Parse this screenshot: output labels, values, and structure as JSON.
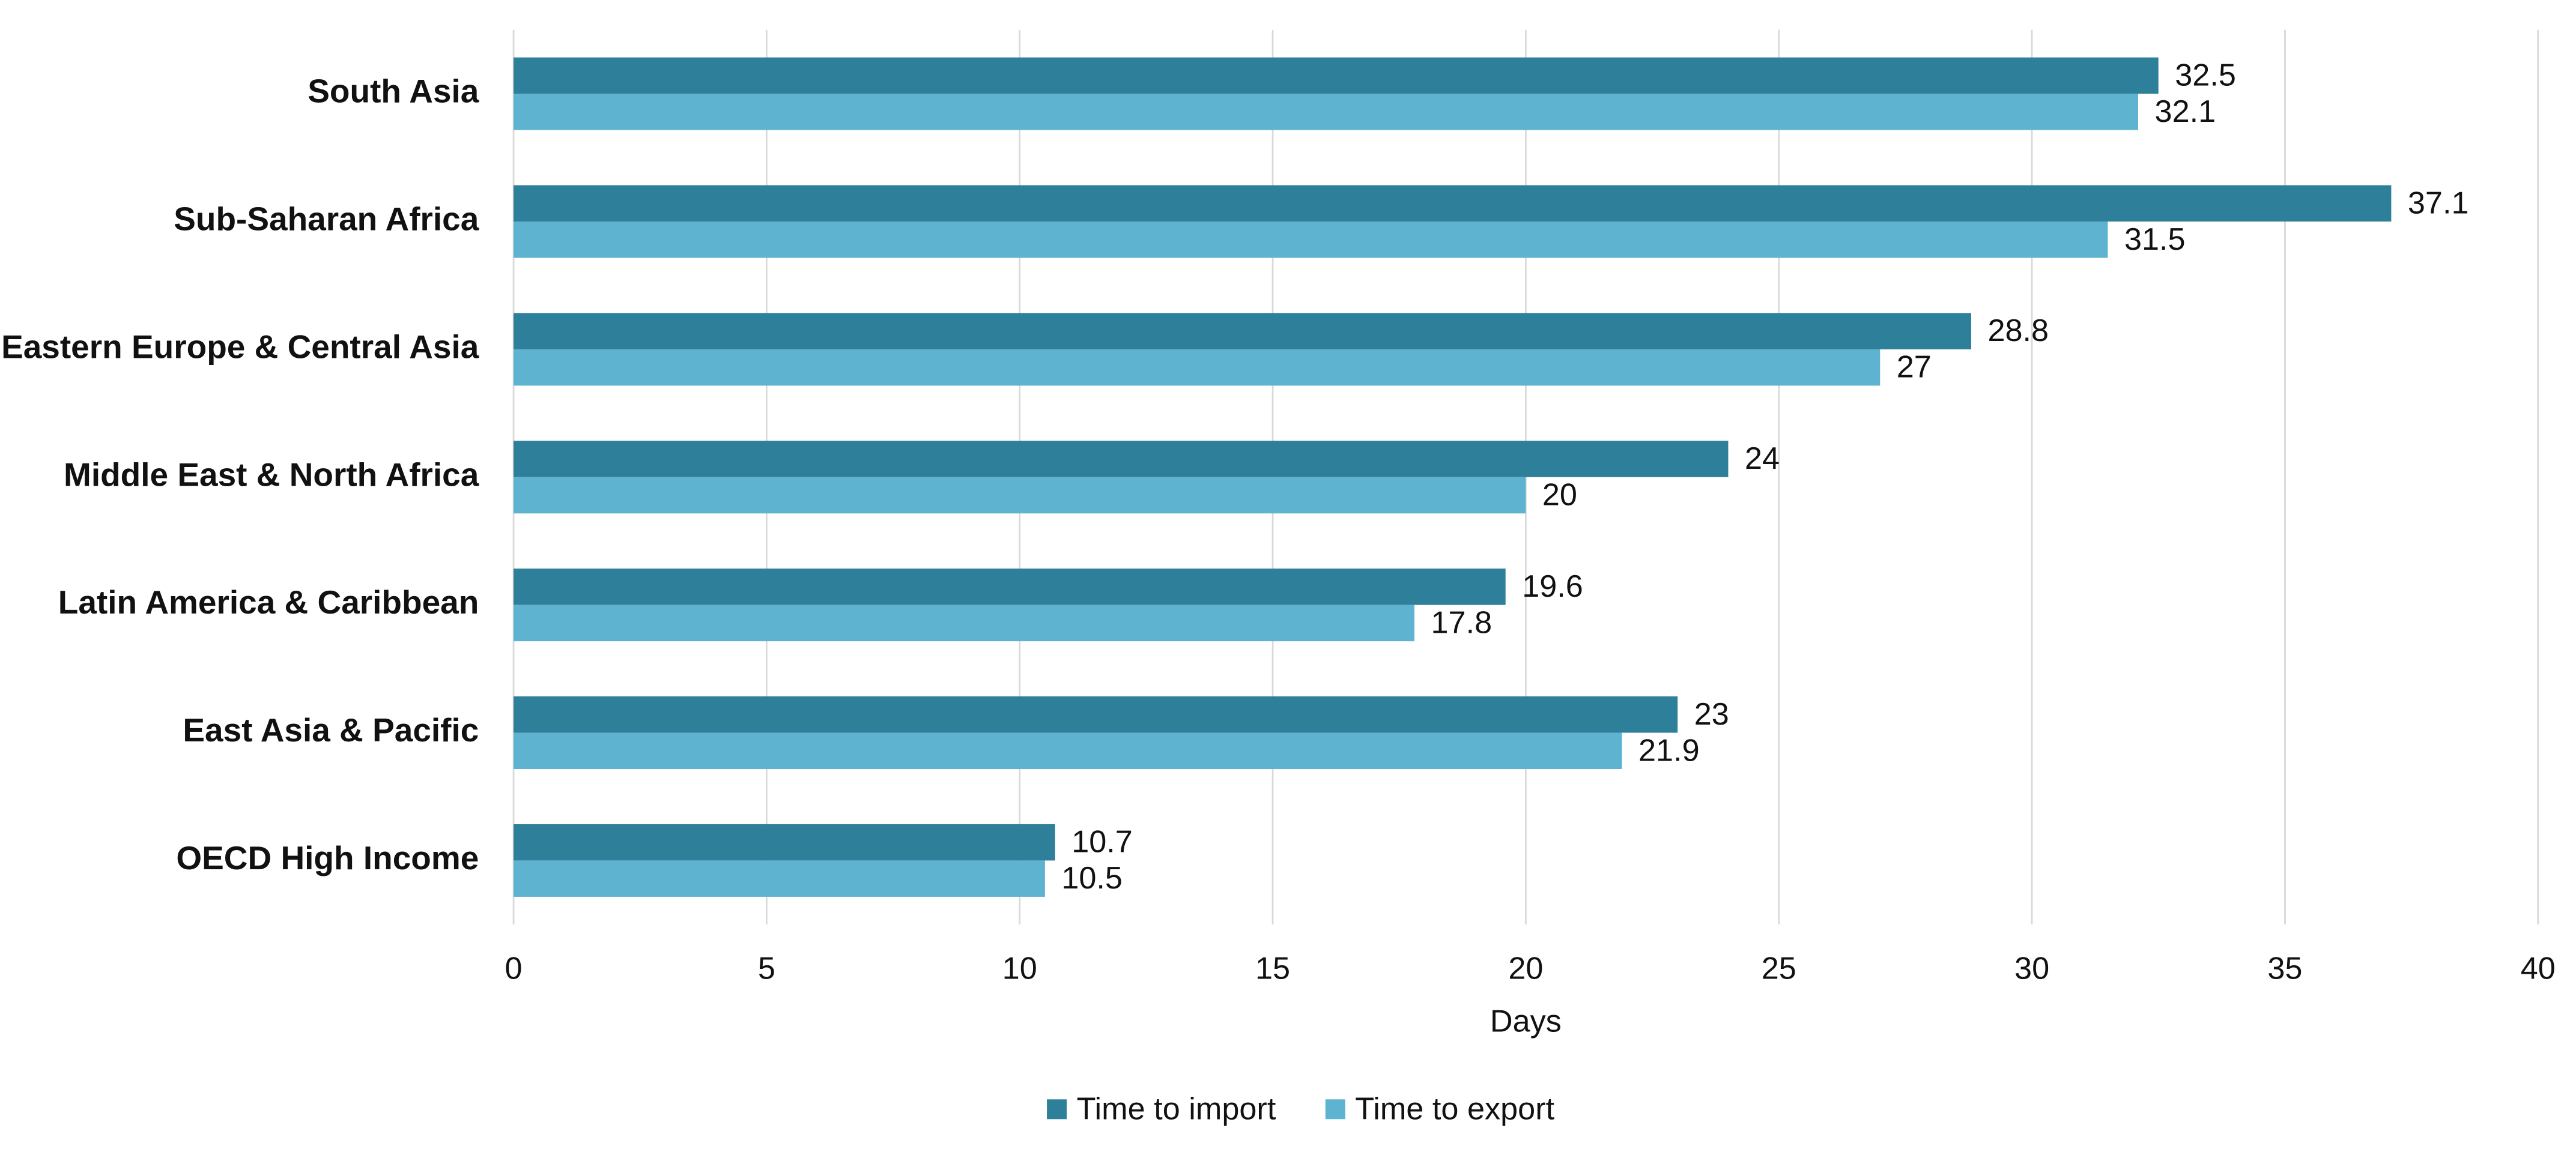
{
  "chart_data": {
    "type": "hbar",
    "categories": [
      "South Asia",
      "Sub-Saharan Africa",
      "Eastern Europe & Central Asia",
      "Middle East & North Africa",
      "Latin America & Caribbean",
      "East Asia & Pacific",
      "OECD High Income"
    ],
    "series": [
      {
        "name": "Time to import",
        "color": "#2e7f9a",
        "values": [
          32.5,
          37.1,
          28.8,
          24,
          19.6,
          23,
          10.7
        ]
      },
      {
        "name": "Time to export",
        "color": "#5db3d0",
        "values": [
          32.1,
          31.5,
          27,
          20,
          17.8,
          21.9,
          10.5
        ]
      }
    ],
    "x_label": "Days",
    "xlim": [
      0,
      40
    ],
    "xticks": [
      0,
      5,
      10,
      15,
      20,
      25,
      30,
      35,
      40
    ],
    "grid": true,
    "legend": "bottom",
    "data_labels": true
  }
}
